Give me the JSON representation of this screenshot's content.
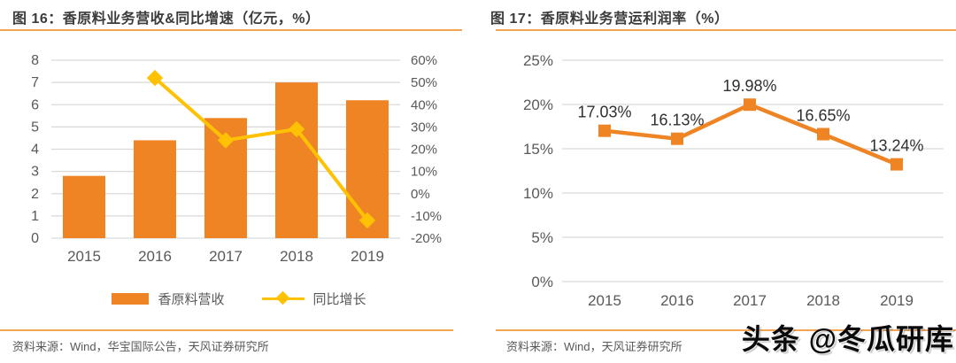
{
  "left_panel": {
    "title": "图 16：香原料业务营收&同比增速（亿元，%）",
    "source": "资料来源：Wind，华宝国际公告，天风证券研究所"
  },
  "right_panel": {
    "title": "图 17：香原料业务营运利润率（%）",
    "source": "资料来源：Wind，天风证券研究所"
  },
  "watermark": {
    "text": "头条 @冬瓜研库"
  },
  "colors": {
    "bar_orange": "#EF8425",
    "line_gold": "#FFC104",
    "rule_orange": "#F3A553",
    "grid_gray": "#D9D9D9",
    "axis_text": "#595959",
    "title_text": "#3B3B3B",
    "data_label_text": "#303030"
  },
  "chart_data": [
    {
      "type": "bar",
      "subtype": "bar+line-combo",
      "title": "图 16：香原料业务营收&同比增速（亿元，%）",
      "categories": [
        "2015",
        "2016",
        "2017",
        "2018",
        "2019"
      ],
      "series": [
        {
          "name": "香原料营收",
          "type": "bar",
          "axis": "left",
          "values": [
            2.8,
            4.4,
            5.4,
            7.0,
            6.2
          ]
        },
        {
          "name": "同比增长",
          "type": "line",
          "axis": "right",
          "values": [
            null,
            52,
            24,
            29,
            -12
          ]
        }
      ],
      "left_axis": {
        "min": 0,
        "max": 8,
        "step": 1,
        "ticks": [
          "8",
          "7",
          "6",
          "5",
          "4",
          "3",
          "2",
          "1",
          "0"
        ]
      },
      "right_axis": {
        "min": -20,
        "max": 60,
        "step": 10,
        "ticks": [
          "60%",
          "50%",
          "40%",
          "30%",
          "20%",
          "10%",
          "0%",
          "-10%",
          "-20%"
        ]
      },
      "grid": true,
      "legend_position": "bottom"
    },
    {
      "type": "line",
      "title": "图 17：香原料业务营运利润率（%）",
      "categories": [
        "2015",
        "2016",
        "2017",
        "2018",
        "2019"
      ],
      "values": [
        17.03,
        16.13,
        19.98,
        16.65,
        13.24
      ],
      "data_labels": [
        "17.03%",
        "16.13%",
        "19.98%",
        "16.65%",
        "13.24%"
      ],
      "y_axis": {
        "min": 0,
        "max": 25,
        "step": 5,
        "ticks": [
          "25%",
          "20%",
          "15%",
          "10%",
          "5%",
          "0%"
        ]
      },
      "grid": true,
      "legend_position": "none"
    }
  ]
}
